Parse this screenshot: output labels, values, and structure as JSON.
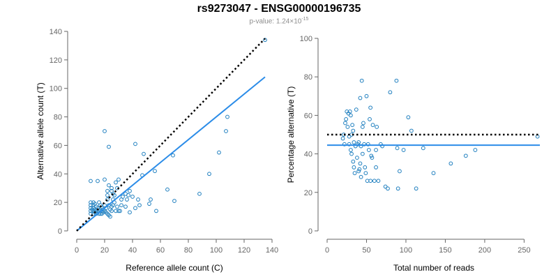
{
  "title": "rs9273047 - ENSG00000196735",
  "pvalue": {
    "prefix": "p-value: 1.24×10",
    "exponent": "-15"
  },
  "colors": {
    "points": "#1f7fbf",
    "fit": "#2b8ce8",
    "reference": "#000000",
    "axis": "#666666"
  },
  "chart_data": [
    {
      "type": "scatter",
      "xlabel": "Reference allele count (C)",
      "ylabel": "Alternative allele count (T)",
      "xlim": [
        0,
        140
      ],
      "ylim": [
        0,
        140
      ],
      "xticks": [
        0,
        20,
        40,
        60,
        80,
        100,
        120,
        140
      ],
      "yticks": [
        0,
        20,
        40,
        60,
        80,
        100,
        120,
        140
      ],
      "reference_line": {
        "style": "dotted",
        "x": [
          0,
          135
        ],
        "y": [
          0,
          135
        ]
      },
      "fit_line": {
        "x": [
          0,
          135
        ],
        "y": [
          0,
          108
        ]
      },
      "points": [
        [
          10,
          35
        ],
        [
          10,
          20
        ],
        [
          10,
          18
        ],
        [
          10,
          16
        ],
        [
          10,
          14
        ],
        [
          10,
          12
        ],
        [
          11,
          15
        ],
        [
          12,
          20
        ],
        [
          12,
          18
        ],
        [
          12,
          16
        ],
        [
          12,
          14
        ],
        [
          12,
          12
        ],
        [
          13,
          19
        ],
        [
          13,
          15
        ],
        [
          13,
          13
        ],
        [
          14,
          17
        ],
        [
          14,
          14
        ],
        [
          14,
          12
        ],
        [
          15,
          35
        ],
        [
          15,
          16
        ],
        [
          15,
          13
        ],
        [
          16,
          20
        ],
        [
          16,
          14
        ],
        [
          16,
          12
        ],
        [
          17,
          18
        ],
        [
          17,
          15
        ],
        [
          17,
          12
        ],
        [
          18,
          16
        ],
        [
          18,
          14
        ],
        [
          18,
          12
        ],
        [
          19,
          15
        ],
        [
          19,
          13
        ],
        [
          20,
          70
        ],
        [
          20,
          36
        ],
        [
          20,
          18
        ],
        [
          20,
          14
        ],
        [
          21,
          16
        ],
        [
          21,
          13
        ],
        [
          22,
          28
        ],
        [
          22,
          25
        ],
        [
          22,
          22
        ],
        [
          22,
          12
        ],
        [
          23,
          59
        ],
        [
          23,
          32
        ],
        [
          23,
          18
        ],
        [
          23,
          11
        ],
        [
          24,
          15
        ],
        [
          24,
          10
        ],
        [
          25,
          30
        ],
        [
          25,
          28
        ],
        [
          25,
          17
        ],
        [
          25,
          14
        ],
        [
          26,
          26
        ],
        [
          26,
          22
        ],
        [
          26,
          18
        ],
        [
          27,
          25
        ],
        [
          27,
          20
        ],
        [
          28,
          34
        ],
        [
          28,
          14
        ],
        [
          29,
          30
        ],
        [
          29,
          17
        ],
        [
          30,
          36
        ],
        [
          30,
          14
        ],
        [
          31,
          14
        ],
        [
          32,
          22
        ],
        [
          32,
          18
        ],
        [
          33,
          24
        ],
        [
          35,
          26
        ],
        [
          35,
          17
        ],
        [
          36,
          22
        ],
        [
          37,
          25
        ],
        [
          38,
          28
        ],
        [
          38,
          13
        ],
        [
          40,
          24
        ],
        [
          42,
          61
        ],
        [
          42,
          16
        ],
        [
          44,
          22
        ],
        [
          45,
          18
        ],
        [
          47,
          39
        ],
        [
          48,
          54
        ],
        [
          52,
          19
        ],
        [
          53,
          22
        ],
        [
          56,
          42
        ],
        [
          57,
          14
        ],
        [
          65,
          29
        ],
        [
          69,
          53
        ],
        [
          70,
          21
        ],
        [
          88,
          26
        ],
        [
          95,
          40
        ],
        [
          102,
          55
        ],
        [
          107,
          70
        ],
        [
          108,
          80
        ],
        [
          135,
          134
        ]
      ]
    },
    {
      "type": "scatter",
      "xlabel": "Total number of reads",
      "ylabel": "Percentage alternative (T)",
      "xlim": [
        0,
        270
      ],
      "ylim": [
        0,
        100
      ],
      "xticks": [
        0,
        50,
        100,
        150,
        200,
        250
      ],
      "yticks": [
        0,
        20,
        40,
        60,
        80,
        100
      ],
      "reference_line": {
        "style": "dotted",
        "x": [
          0,
          270
        ],
        "y": [
          50,
          50
        ]
      },
      "fit_line": {
        "x": [
          0,
          270
        ],
        "y": [
          44.5,
          44.5
        ]
      },
      "points": [
        [
          20,
          48
        ],
        [
          21,
          50
        ],
        [
          22,
          45
        ],
        [
          23,
          56
        ],
        [
          24,
          58
        ],
        [
          25,
          62
        ],
        [
          26,
          54
        ],
        [
          27,
          61
        ],
        [
          28,
          49
        ],
        [
          28,
          45
        ],
        [
          29,
          62
        ],
        [
          30,
          60
        ],
        [
          30,
          42
        ],
        [
          31,
          50
        ],
        [
          31,
          40
        ],
        [
          32,
          55
        ],
        [
          33,
          36
        ],
        [
          33,
          52
        ],
        [
          34,
          33
        ],
        [
          34,
          46
        ],
        [
          35,
          30
        ],
        [
          36,
          44
        ],
        [
          37,
          63
        ],
        [
          38,
          38
        ],
        [
          39,
          45
        ],
        [
          40,
          46
        ],
        [
          40,
          31
        ],
        [
          41,
          32
        ],
        [
          42,
          69
        ],
        [
          42,
          35
        ],
        [
          43,
          44
        ],
        [
          43,
          28
        ],
        [
          44,
          78
        ],
        [
          45,
          54
        ],
        [
          45,
          40
        ],
        [
          46,
          56
        ],
        [
          47,
          45
        ],
        [
          48,
          33
        ],
        [
          49,
          30
        ],
        [
          50,
          70
        ],
        [
          51,
          26
        ],
        [
          52,
          45
        ],
        [
          53,
          42
        ],
        [
          54,
          58
        ],
        [
          55,
          64
        ],
        [
          55,
          26
        ],
        [
          56,
          39
        ],
        [
          57,
          38
        ],
        [
          58,
          55
        ],
        [
          60,
          26
        ],
        [
          62,
          42
        ],
        [
          62,
          33
        ],
        [
          63,
          54
        ],
        [
          65,
          26
        ],
        [
          68,
          45
        ],
        [
          70,
          44
        ],
        [
          74,
          23
        ],
        [
          77,
          22
        ],
        [
          80,
          72
        ],
        [
          88,
          78
        ],
        [
          89,
          43
        ],
        [
          90,
          22
        ],
        [
          92,
          31
        ],
        [
          97,
          42
        ],
        [
          103,
          59
        ],
        [
          107,
          52
        ],
        [
          113,
          22
        ],
        [
          122,
          43
        ],
        [
          135,
          30
        ],
        [
          157,
          35
        ],
        [
          176,
          39
        ],
        [
          188,
          42
        ],
        [
          267,
          49
        ]
      ]
    }
  ]
}
